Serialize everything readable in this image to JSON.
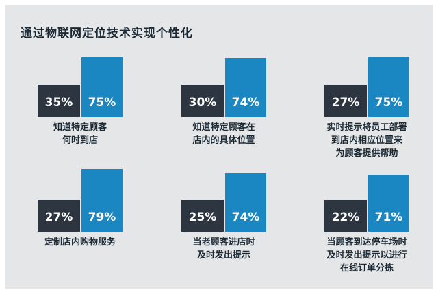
{
  "title": "通过物联网定位技术实现个性化",
  "colors": {
    "background": "#e4e6e8",
    "dark_bar": "#2d3640",
    "blue_bar": "#1a86c2",
    "text": "#1d2a34"
  },
  "chart_data": [
    {
      "type": "bar",
      "categories": [
        "",
        ""
      ],
      "values": [
        35,
        75
      ],
      "labels": [
        "35%",
        "75%"
      ],
      "caption": [
        "知道特定顾客",
        "何时到店"
      ]
    },
    {
      "type": "bar",
      "categories": [
        "",
        ""
      ],
      "values": [
        30,
        74
      ],
      "labels": [
        "30%",
        "74%"
      ],
      "caption": [
        "知道特定顾客在",
        "店内的具体位置"
      ]
    },
    {
      "type": "bar",
      "categories": [
        "",
        ""
      ],
      "values": [
        27,
        75
      ],
      "labels": [
        "27%",
        "75%"
      ],
      "caption": [
        "实时提示将员工部署",
        "到店内相应位置来",
        "为顾客提供帮助"
      ]
    },
    {
      "type": "bar",
      "categories": [
        "",
        ""
      ],
      "values": [
        27,
        79
      ],
      "labels": [
        "27%",
        "79%"
      ],
      "caption": [
        "定制店内购物服务"
      ]
    },
    {
      "type": "bar",
      "categories": [
        "",
        ""
      ],
      "values": [
        25,
        74
      ],
      "labels": [
        "25%",
        "74%"
      ],
      "caption": [
        "当老顾客进店时",
        "及时发出提示"
      ]
    },
    {
      "type": "bar",
      "categories": [
        "",
        ""
      ],
      "values": [
        22,
        71
      ],
      "labels": [
        "22%",
        "71%"
      ],
      "caption": [
        "当顾客到达停车场时",
        "及时发出提示以进行",
        "在线订单分拣"
      ]
    }
  ]
}
